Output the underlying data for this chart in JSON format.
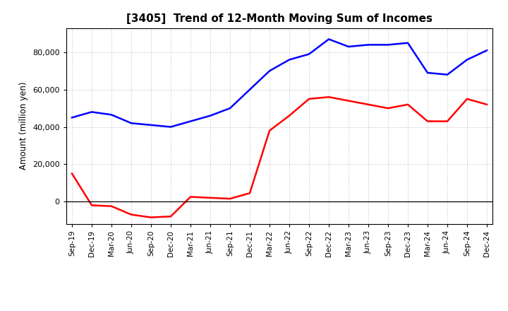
{
  "title": "[3405]  Trend of 12-Month Moving Sum of Incomes",
  "ylabel": "Amount (million yen)",
  "x_labels": [
    "Sep-19",
    "Dec-19",
    "Mar-20",
    "Jun-20",
    "Sep-20",
    "Dec-20",
    "Mar-21",
    "Jun-21",
    "Sep-21",
    "Dec-21",
    "Mar-22",
    "Jun-22",
    "Sep-22",
    "Dec-22",
    "Mar-23",
    "Jun-23",
    "Sep-23",
    "Dec-23",
    "Mar-24",
    "Jun-24",
    "Sep-24",
    "Dec-24"
  ],
  "ordinary_income": [
    45000,
    48000,
    46500,
    42000,
    41000,
    40000,
    43000,
    46000,
    50000,
    60000,
    70000,
    76000,
    79000,
    87000,
    83000,
    84000,
    84000,
    85000,
    69000,
    68000,
    76000,
    81000
  ],
  "net_income": [
    15000,
    -2000,
    -2500,
    -7000,
    -8500,
    -8000,
    2500,
    2000,
    1500,
    4500,
    38000,
    46000,
    55000,
    56000,
    54000,
    52000,
    50000,
    52000,
    43000,
    43000,
    55000,
    52000
  ],
  "ordinary_color": "#0000ff",
  "net_color": "#ff0000",
  "background_color": "#ffffff",
  "grid_color": "#aaaaaa"
}
